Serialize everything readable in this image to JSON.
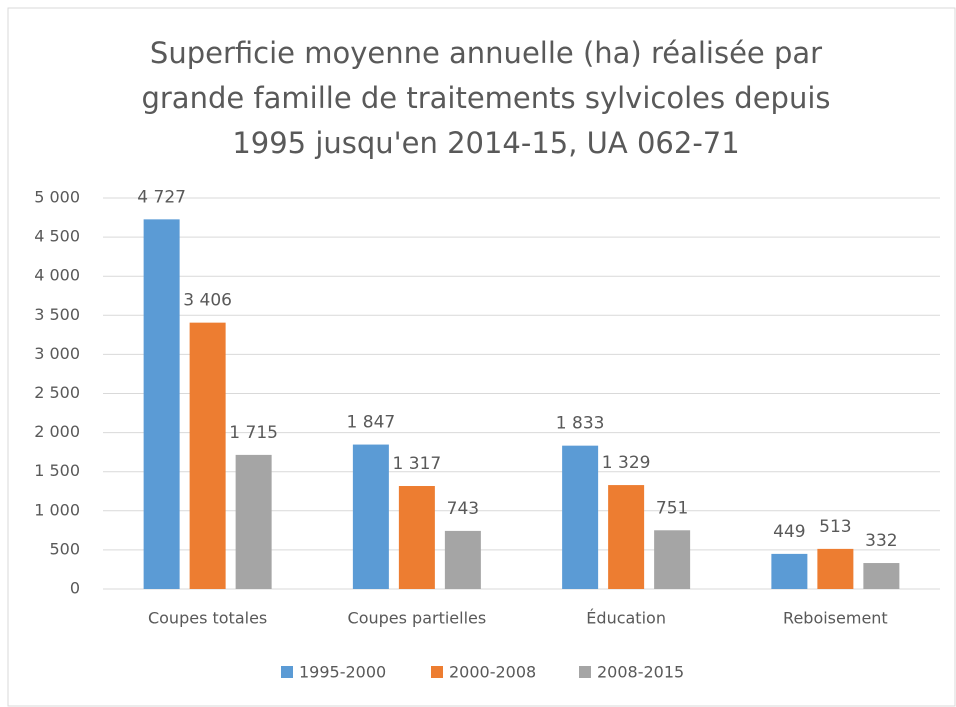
{
  "chart_data": {
    "type": "bar",
    "title": [
      "Superficie moyenne annuelle (ha) réalisée par",
      "grande famille de traitements sylvicoles depuis",
      "1995 jusqu'en 2014-15, UA 062-71"
    ],
    "categories": [
      "Coupes totales",
      "Coupes partielles",
      "Éducation",
      "Reboisement"
    ],
    "series": [
      {
        "name": "1995-2000",
        "color": "#5b9bd5",
        "values": [
          4727,
          1847,
          1833,
          449
        ],
        "value_labels": [
          "4 727",
          "1 847",
          "1 833",
          "449"
        ]
      },
      {
        "name": "2000-2008",
        "color": "#ed7d31",
        "values": [
          3406,
          1317,
          1329,
          513
        ],
        "value_labels": [
          "3 406",
          "1 317",
          "1 329",
          "513"
        ]
      },
      {
        "name": "2008-2015",
        "color": "#a5a5a5",
        "values": [
          1715,
          743,
          751,
          332
        ],
        "value_labels": [
          "1 715",
          "743",
          "751",
          "332"
        ]
      }
    ],
    "ylim": [
      0,
      5000
    ],
    "yticks": [
      0,
      500,
      {
        "value": 1000,
        "label": "1 000"
      },
      {
        "value": 1500,
        "label": "1 500"
      },
      {
        "value": 2000,
        "label": "2 000"
      },
      {
        "value": 2500,
        "label": "2 500"
      },
      {
        "value": 3000,
        "label": "3 000"
      },
      {
        "value": 3500,
        "label": "3 500"
      },
      {
        "value": 4000,
        "label": "4 000"
      },
      {
        "value": 4500,
        "label": "4 500"
      },
      {
        "value": 5000,
        "label": "5 000"
      }
    ],
    "grid": true,
    "legend": "bottom"
  }
}
